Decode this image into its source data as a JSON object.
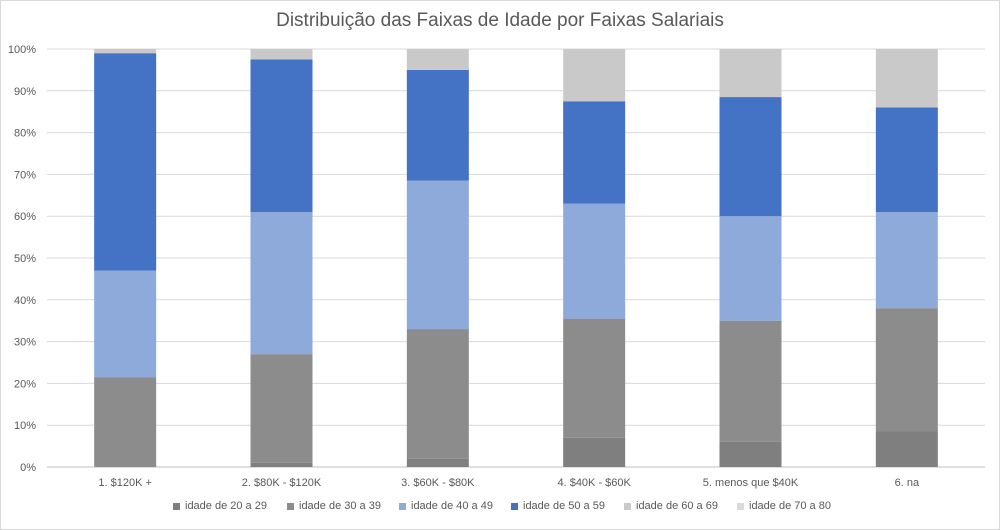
{
  "chart_data": {
    "type": "bar",
    "stacked": true,
    "title": "Distribuição das Faixas de Idade por Faixas Salariais",
    "categories": [
      "1. $120K +",
      "2. $80K - $120K",
      "3. $60K - $80K",
      "4. $40K - $60K",
      "5. menos que $40K",
      "6. na"
    ],
    "ylim": [
      0,
      100
    ],
    "y_ticks": [
      "0%",
      "10%",
      "20%",
      "30%",
      "40%",
      "50%",
      "60%",
      "70%",
      "80%",
      "90%",
      "100%"
    ],
    "grid": true,
    "legend_position": "bottom",
    "series": [
      {
        "name": "idade de 20 a 29",
        "color": "#7f7f7f",
        "values": [
          0,
          1,
          2,
          7,
          6,
          8.5
        ]
      },
      {
        "name": "idade de 30 a 39",
        "color": "#8c8c8c",
        "values": [
          21.5,
          26,
          31,
          28.5,
          29,
          29.5
        ]
      },
      {
        "name": "idade de 40 a 49",
        "color": "#8eaadb",
        "values": [
          25.5,
          34,
          35.5,
          27.5,
          25,
          23
        ]
      },
      {
        "name": "idade de 50 a 59",
        "color": "#4472c4",
        "values": [
          52,
          36.5,
          26.5,
          24.5,
          28.5,
          25
        ]
      },
      {
        "name": "idade de 60 a 69",
        "color": "#c9c9c9",
        "values": [
          1,
          2.5,
          5,
          12.5,
          11.5,
          14
        ]
      },
      {
        "name": "idade de 70 a 80",
        "color": "#d9d9d9",
        "values": [
          0,
          0,
          0,
          0,
          0,
          0
        ]
      }
    ]
  }
}
